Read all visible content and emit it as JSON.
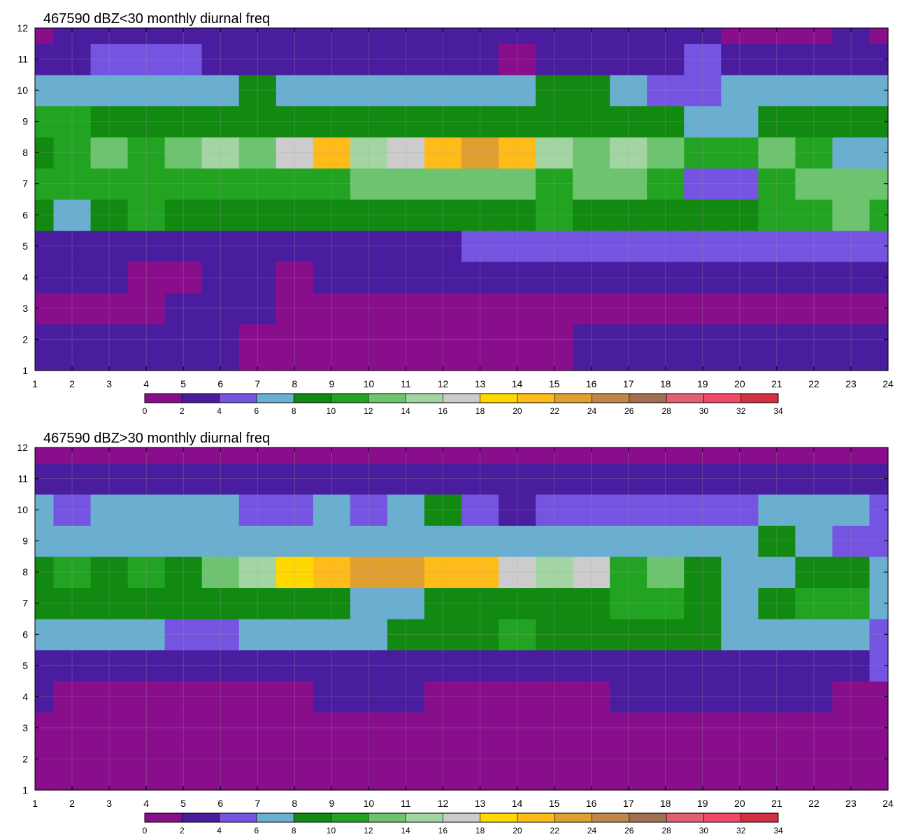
{
  "chart_data": [
    {
      "type": "heatmap",
      "title": "467590 dBZ<30 monthly diurnal freq",
      "xlabel": "",
      "ylabel": "",
      "xlim": [
        1,
        24
      ],
      "ylim": [
        1,
        12
      ],
      "grid": true,
      "x": [
        1,
        2,
        3,
        4,
        5,
        6,
        7,
        8,
        9,
        10,
        11,
        12,
        13,
        14,
        15,
        16,
        17,
        18,
        19,
        20,
        21,
        22,
        23,
        24
      ],
      "y": [
        1,
        2,
        3,
        4,
        5,
        6,
        7,
        8,
        9,
        10,
        11,
        12
      ],
      "x_tick_labels": [
        "1",
        "2",
        "3",
        "4",
        "5",
        "6",
        "7",
        "8",
        "9",
        "10",
        "11",
        "12",
        "13",
        "14",
        "15",
        "16",
        "17",
        "18",
        "19",
        "20",
        "21",
        "22",
        "23",
        "24"
      ],
      "y_tick_labels": [
        "1",
        "2",
        "3",
        "4",
        "5",
        "6",
        "7",
        "8",
        "9",
        "10",
        "11",
        "12"
      ],
      "z": [
        [
          2.5,
          2.5,
          2.5,
          2.5,
          2.5,
          2.5,
          1.5,
          1.5,
          1.5,
          1,
          1,
          1,
          1,
          1,
          1,
          2,
          2,
          2,
          2.5,
          2,
          2,
          2,
          2,
          2
        ],
        [
          2.5,
          2.5,
          2.5,
          2.5,
          2.5,
          2.5,
          1.5,
          1.5,
          1.5,
          1,
          1,
          1,
          1,
          1,
          1,
          2,
          2,
          2,
          2.5,
          2,
          2,
          2,
          2,
          2
        ],
        [
          1.5,
          1.5,
          1.5,
          1.5,
          2.5,
          2.5,
          2.5,
          1.5,
          1,
          1,
          1,
          1,
          1,
          1,
          1,
          1,
          1,
          1,
          1,
          1,
          1,
          1,
          1,
          1
        ],
        [
          2.5,
          2.5,
          2.5,
          1.5,
          1.5,
          3,
          3,
          1.5,
          2.5,
          2.5,
          2.5,
          3,
          3,
          3,
          3,
          3,
          3,
          3,
          3,
          3,
          3,
          3,
          2.5,
          3
        ],
        [
          3.5,
          3.5,
          3.5,
          3.5,
          3.5,
          3.5,
          3.5,
          3.5,
          3.5,
          3.5,
          3.5,
          3.5,
          4.5,
          4.5,
          4.5,
          5,
          5,
          5,
          5,
          4.5,
          4.5,
          4.5,
          5,
          5
        ],
        [
          9,
          7.5,
          9,
          10,
          9,
          9,
          8.5,
          9,
          9,
          9,
          9,
          8.5,
          8.5,
          8.5,
          10,
          8.5,
          9,
          9,
          8.5,
          8.5,
          11,
          11,
          12.5,
          11
        ],
        [
          10.5,
          11,
          10,
          11,
          11,
          11,
          10,
          10,
          11,
          13,
          13,
          13,
          13,
          13,
          11,
          13,
          13,
          10,
          5,
          5,
          11,
          13,
          13,
          13
        ],
        [
          8,
          11,
          13,
          11,
          13,
          14,
          13,
          17,
          20,
          15,
          17,
          20,
          22,
          20,
          15,
          13,
          15,
          13,
          11,
          11,
          13,
          11,
          7,
          7
        ],
        [
          10,
          10,
          9,
          8,
          8,
          8.5,
          8,
          8,
          8.5,
          8.5,
          8.5,
          8.5,
          8.5,
          8.5,
          8.5,
          8,
          8,
          8,
          7,
          7,
          9.5,
          9.5,
          9.5,
          8
        ],
        [
          7,
          7,
          6,
          6,
          6,
          7,
          9,
          7,
          7,
          7,
          6,
          6,
          7,
          7,
          9,
          9,
          7,
          5,
          5,
          7,
          7,
          7,
          7,
          7
        ],
        [
          3.5,
          3.5,
          5,
          5,
          5,
          3.5,
          3.5,
          3.5,
          3.5,
          3.5,
          3.5,
          3.5,
          3.5,
          1.5,
          3.5,
          3.5,
          3.5,
          3.5,
          5,
          3.5,
          3.5,
          3.5,
          3.5,
          3.5
        ],
        [
          1,
          2.5,
          2.5,
          2.5,
          2.5,
          2.5,
          2.5,
          2.5,
          3,
          3,
          3,
          3,
          3,
          3,
          3,
          3,
          3,
          3,
          3,
          1.5,
          1.5,
          1.5,
          3,
          1
        ]
      ],
      "colorbar": {
        "levels": [
          0,
          2,
          4,
          6,
          8,
          10,
          12,
          14,
          16,
          18,
          20,
          22,
          24,
          26,
          28,
          30,
          32,
          34
        ],
        "tick_labels": [
          "0",
          "2",
          "4",
          "6",
          "8",
          "10",
          "12",
          "14",
          "16",
          "18",
          "20",
          "22",
          "24",
          "26",
          "28",
          "30",
          "32",
          "34"
        ],
        "colors": [
          "#880e8c",
          "#4a1d9e",
          "#7454e0",
          "#6aaed0",
          "#128a12",
          "#22a422",
          "#6ec46e",
          "#a3d5a3",
          "#cccccc",
          "#ffd800",
          "#ffbb1a",
          "#e0a030",
          "#c08848",
          "#a07050",
          "#e06070",
          "#f04868",
          "#d03040"
        ]
      }
    },
    {
      "type": "heatmap",
      "title": "467590 dBZ>30 monthly diurnal freq",
      "xlabel": "",
      "ylabel": "",
      "xlim": [
        1,
        24
      ],
      "ylim": [
        1,
        12
      ],
      "grid": true,
      "x": [
        1,
        2,
        3,
        4,
        5,
        6,
        7,
        8,
        9,
        10,
        11,
        12,
        13,
        14,
        15,
        16,
        17,
        18,
        19,
        20,
        21,
        22,
        23,
        24
      ],
      "y": [
        1,
        2,
        3,
        4,
        5,
        6,
        7,
        8,
        9,
        10,
        11,
        12
      ],
      "x_tick_labels": [
        "1",
        "2",
        "3",
        "4",
        "5",
        "6",
        "7",
        "8",
        "9",
        "10",
        "11",
        "12",
        "13",
        "14",
        "15",
        "16",
        "17",
        "18",
        "19",
        "20",
        "21",
        "22",
        "23",
        "24"
      ],
      "y_tick_labels": [
        "1",
        "2",
        "3",
        "4",
        "5",
        "6",
        "7",
        "8",
        "9",
        "10",
        "11",
        "12"
      ],
      "z": [
        [
          1,
          1,
          1,
          1,
          1,
          1,
          1,
          1,
          1,
          1,
          1,
          1,
          1,
          1,
          1,
          1,
          1,
          1,
          1,
          1,
          1,
          1,
          1,
          1
        ],
        [
          1,
          1,
          1,
          1,
          1,
          1,
          1,
          1,
          1,
          1,
          1,
          1,
          1,
          1,
          1,
          1,
          1,
          1,
          1,
          1,
          1,
          1,
          1,
          1
        ],
        [
          1,
          1,
          1,
          1,
          1,
          1,
          1,
          1,
          1,
          1,
          1,
          1,
          1,
          1,
          1,
          1,
          1,
          1,
          1,
          1,
          1,
          1,
          1,
          1
        ],
        [
          2.5,
          1,
          1,
          1,
          1,
          1,
          1,
          1,
          2.5,
          2.5,
          2.5,
          1,
          1,
          1,
          1,
          1,
          2.5,
          2.5,
          2.5,
          2.5,
          2.5,
          2.5,
          1,
          1
        ],
        [
          3,
          3,
          3,
          3,
          3,
          3,
          2.5,
          2.5,
          3,
          3,
          3,
          3,
          3,
          3,
          3,
          3,
          3,
          3,
          3,
          3,
          3,
          3,
          3,
          5
        ],
        [
          7,
          7,
          7,
          7,
          5,
          5,
          7,
          7,
          7,
          7,
          8.5,
          9,
          9,
          11,
          9,
          9,
          9,
          9,
          9,
          7,
          7,
          7,
          7,
          5
        ],
        [
          9,
          9,
          9,
          9,
          9,
          9,
          9,
          9,
          9,
          7,
          7,
          9,
          9,
          9,
          9,
          9,
          11,
          11,
          9,
          7,
          9,
          11,
          11,
          7
        ],
        [
          9,
          11,
          9,
          11,
          9,
          13,
          15,
          19,
          21,
          23,
          23,
          21,
          21,
          17,
          15,
          17,
          11,
          13,
          9,
          7,
          7,
          9,
          9,
          7
        ],
        [
          7,
          7,
          7,
          7,
          7,
          7,
          7,
          7,
          7,
          7,
          7,
          7,
          7,
          7,
          7,
          7,
          7,
          7,
          7,
          7,
          9,
          7,
          5,
          5
        ],
        [
          7,
          5,
          7,
          7,
          7,
          7,
          5,
          5,
          7,
          5,
          7,
          9,
          5,
          3,
          5,
          5,
          5,
          5,
          5,
          5,
          7,
          7,
          7,
          5
        ],
        [
          3,
          3,
          3,
          3,
          3,
          3,
          3,
          3,
          3,
          3,
          3,
          3,
          3,
          3,
          3,
          3,
          3,
          3,
          3,
          3,
          3,
          3,
          3,
          3
        ],
        [
          1,
          1,
          1,
          1,
          1,
          1,
          1,
          1,
          1,
          1,
          1,
          1,
          1,
          1,
          1,
          1,
          1,
          1,
          1,
          1,
          1,
          1,
          1,
          1
        ]
      ],
      "colorbar": {
        "levels": [
          0,
          2,
          4,
          6,
          8,
          10,
          12,
          14,
          16,
          18,
          20,
          22,
          24,
          26,
          28,
          30,
          32,
          34
        ],
        "tick_labels": [
          "0",
          "2",
          "4",
          "6",
          "8",
          "10",
          "12",
          "14",
          "16",
          "18",
          "20",
          "22",
          "24",
          "26",
          "28",
          "30",
          "32",
          "34"
        ],
        "colors": [
          "#880e8c",
          "#4a1d9e",
          "#7454e0",
          "#6aaed0",
          "#128a12",
          "#22a422",
          "#6ec46e",
          "#a3d5a3",
          "#cccccc",
          "#ffd800",
          "#ffbb1a",
          "#e0a030",
          "#c08848",
          "#a07050",
          "#e06070",
          "#f04868",
          "#d03040"
        ]
      }
    }
  ]
}
